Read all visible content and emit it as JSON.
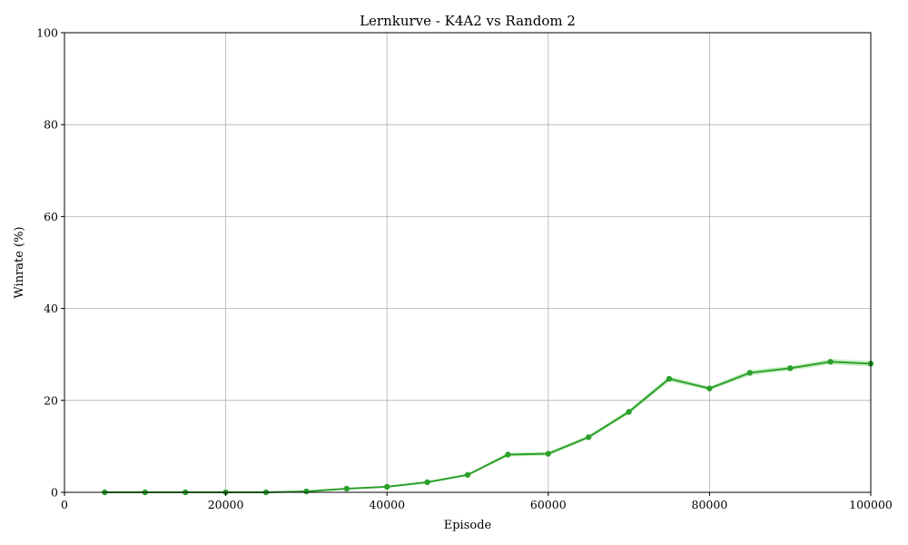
{
  "chart_data": {
    "type": "line",
    "title": "Lernkurve - K4A2 vs Random 2",
    "xlabel": "Episode",
    "ylabel": "Winrate (%)",
    "xlim": [
      0,
      100000
    ],
    "ylim": [
      0,
      100
    ],
    "grid": true,
    "x_ticks": [
      "0",
      "20000",
      "40000",
      "60000",
      "80000",
      "100000"
    ],
    "y_ticks": [
      "0",
      "20",
      "40",
      "60",
      "80",
      "100"
    ],
    "x_tick_values": [
      0,
      20000,
      40000,
      60000,
      80000,
      100000
    ],
    "y_tick_values": [
      0,
      20,
      40,
      60,
      80,
      100
    ],
    "series": [
      {
        "color": "#2ca02c",
        "band_color": "#98df8a",
        "x": [
          5000,
          10000,
          15000,
          20000,
          25000,
          30000,
          35000,
          40000,
          45000,
          50000,
          55000,
          60000,
          65000,
          70000,
          75000,
          80000,
          85000,
          90000,
          95000,
          100000
        ],
        "values": [
          0.0,
          0.0,
          0.0,
          0.0,
          0.0,
          0.2,
          0.8,
          1.2,
          2.2,
          3.8,
          8.2,
          8.4,
          12.0,
          17.5,
          24.7,
          22.6,
          26.0,
          27.0,
          28.4,
          28.0
        ],
        "band_low": [
          0.0,
          0.0,
          0.0,
          0.0,
          0.0,
          0.1,
          0.7,
          1.1,
          2.0,
          3.6,
          7.8,
          8.0,
          11.6,
          17.0,
          24.1,
          22.2,
          25.4,
          26.5,
          27.8,
          27.4
        ],
        "band_high": [
          0.0,
          0.0,
          0.0,
          0.0,
          0.0,
          0.3,
          0.9,
          1.3,
          2.4,
          4.0,
          8.6,
          8.8,
          12.4,
          18.0,
          25.3,
          23.0,
          26.6,
          27.5,
          29.0,
          28.6
        ]
      }
    ]
  }
}
